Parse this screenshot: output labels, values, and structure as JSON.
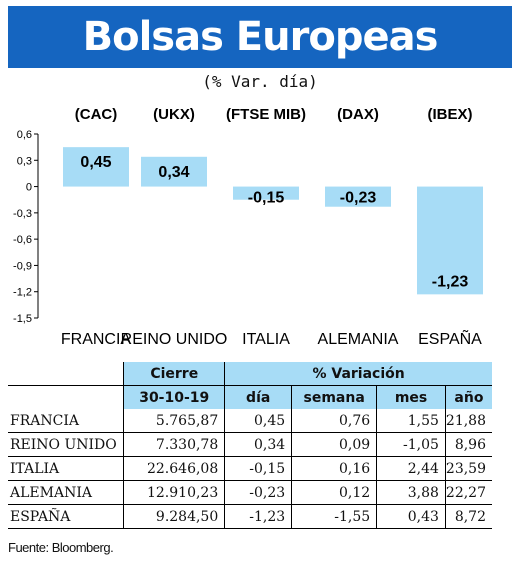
{
  "header": {
    "title": "Bolsas Europeas",
    "subtitle": "(% Var. día)"
  },
  "chart_data": {
    "type": "bar",
    "categories": [
      "FRANCIA",
      "REINO UNIDO",
      "ITALIA",
      "ALEMANIA",
      "ESPAÑA"
    ],
    "tickers": [
      "(CAC)",
      "(UKX)",
      "(FTSE MIB)",
      "(DAX)",
      "(IBEX)"
    ],
    "values": [
      0.45,
      0.34,
      -0.15,
      -0.23,
      -1.23
    ],
    "value_labels": [
      "0,45",
      "0,34",
      "-0,15",
      "-0,23",
      "-1,23"
    ],
    "ylim": [
      -1.5,
      0.6
    ],
    "yticks": [
      0.6,
      0.3,
      0,
      -0.3,
      -0.6,
      -0.9,
      -1.2,
      -1.5
    ],
    "ytick_labels": [
      "0,6",
      "0,3",
      "0",
      "-0,3",
      "-0,6",
      "-0,9",
      "-1,2",
      "-1,5"
    ],
    "bar_color": "#a7dcf6",
    "grid": false
  },
  "table": {
    "group_cierre": "Cierre",
    "group_variacion": "% Variación",
    "date": "30-10-19",
    "cols": [
      "día",
      "semana",
      "mes",
      "año"
    ],
    "rows": [
      {
        "name": "FRANCIA",
        "cierre": "5.765,87",
        "dia": "0,45",
        "semana": "0,76",
        "mes": "1,55",
        "ano": "21,88"
      },
      {
        "name": "REINO UNIDO",
        "cierre": "7.330,78",
        "dia": "0,34",
        "semana": "0,09",
        "mes": "-1,05",
        "ano": "8,96"
      },
      {
        "name": "ITALIA",
        "cierre": "22.646,08",
        "dia": "-0,15",
        "semana": "0,16",
        "mes": "2,44",
        "ano": "23,59"
      },
      {
        "name": "ALEMANIA",
        "cierre": "12.910,23",
        "dia": "-0,23",
        "semana": "0,12",
        "mes": "3,88",
        "ano": "22,27"
      },
      {
        "name": "ESPAÑA",
        "cierre": "9.284,50",
        "dia": "-1,23",
        "semana": "-1,55",
        "mes": "0,43",
        "ano": "8,72"
      }
    ]
  },
  "source": "Fuente: Bloomberg.",
  "colors": {
    "title_bg": "#1565c0",
    "header_bg": "#a7dcf6"
  }
}
